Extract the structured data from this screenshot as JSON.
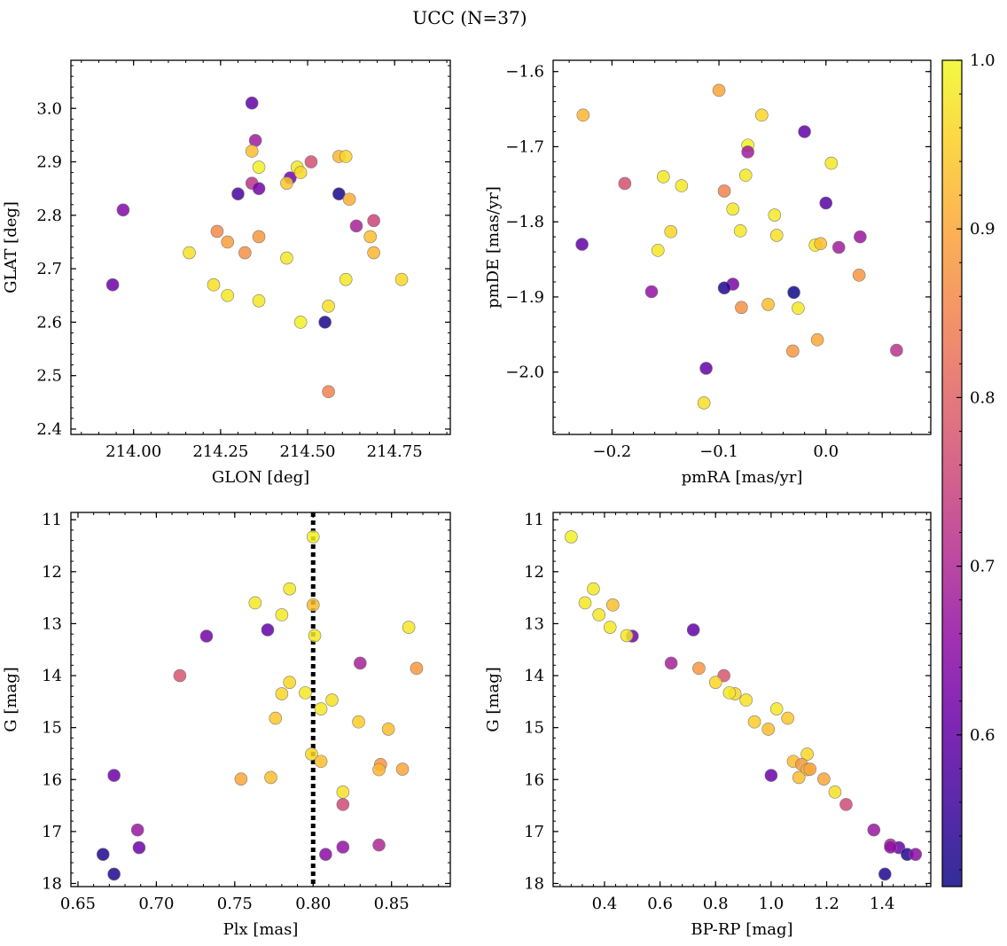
{
  "figure": {
    "title": "UCC (N=37)"
  },
  "colors": {
    "cmap": [
      "#0d0887",
      "#3d049b",
      "#6a00a8",
      "#900da4",
      "#b12a90",
      "#cc4778",
      "#e16462",
      "#f2844b",
      "#fca636",
      "#fcce25",
      "#f0f921"
    ]
  },
  "colorbar": {
    "vmin": 0.51,
    "vmax": 1.0,
    "ticks": [
      "0.6",
      "0.7",
      "0.8",
      "0.9",
      "1.0"
    ],
    "tick_values": [
      0.6,
      0.7,
      0.8,
      0.9,
      1.0
    ]
  },
  "chart_data": [
    {
      "type": "scatter",
      "xlabel": "GLON [deg]",
      "ylabel": "GLAT [deg]",
      "xlim": [
        213.82,
        214.91
      ],
      "ylim": [
        2.39,
        3.09
      ],
      "xticks": [
        "214.00",
        "214.25",
        "214.50",
        "214.75"
      ],
      "xtick_values": [
        214.0,
        214.25,
        214.5,
        214.75
      ],
      "yticks": [
        "2.4",
        "2.5",
        "2.6",
        "2.7",
        "2.8",
        "2.9",
        "3.0"
      ],
      "ytick_values": [
        2.4,
        2.5,
        2.6,
        2.7,
        2.8,
        2.9,
        3.0
      ],
      "points": [
        {
          "x": 214.34,
          "y": 3.01,
          "c": 0.6
        },
        {
          "x": 214.35,
          "y": 2.94,
          "c": 0.68
        },
        {
          "x": 214.34,
          "y": 2.92,
          "c": 0.93
        },
        {
          "x": 214.36,
          "y": 2.89,
          "c": 0.99
        },
        {
          "x": 214.51,
          "y": 2.9,
          "c": 0.77
        },
        {
          "x": 214.59,
          "y": 2.91,
          "c": 0.92
        },
        {
          "x": 214.61,
          "y": 2.91,
          "c": 0.96
        },
        {
          "x": 214.45,
          "y": 2.87,
          "c": 0.62
        },
        {
          "x": 214.47,
          "y": 2.89,
          "c": 0.98
        },
        {
          "x": 214.48,
          "y": 2.88,
          "c": 0.96
        },
        {
          "x": 214.44,
          "y": 2.86,
          "c": 0.94
        },
        {
          "x": 214.34,
          "y": 2.86,
          "c": 0.72
        },
        {
          "x": 214.36,
          "y": 2.85,
          "c": 0.62
        },
        {
          "x": 214.3,
          "y": 2.84,
          "c": 0.57
        },
        {
          "x": 214.59,
          "y": 2.84,
          "c": 0.52
        },
        {
          "x": 214.62,
          "y": 2.83,
          "c": 0.91
        },
        {
          "x": 213.97,
          "y": 2.81,
          "c": 0.64
        },
        {
          "x": 214.64,
          "y": 2.78,
          "c": 0.69
        },
        {
          "x": 214.69,
          "y": 2.79,
          "c": 0.75
        },
        {
          "x": 214.24,
          "y": 2.77,
          "c": 0.86
        },
        {
          "x": 214.27,
          "y": 2.75,
          "c": 0.89
        },
        {
          "x": 214.36,
          "y": 2.76,
          "c": 0.88
        },
        {
          "x": 214.68,
          "y": 2.76,
          "c": 0.93
        },
        {
          "x": 214.16,
          "y": 2.73,
          "c": 0.97
        },
        {
          "x": 214.32,
          "y": 2.73,
          "c": 0.87
        },
        {
          "x": 214.69,
          "y": 2.73,
          "c": 0.92
        },
        {
          "x": 214.44,
          "y": 2.72,
          "c": 0.98
        },
        {
          "x": 213.94,
          "y": 2.67,
          "c": 0.61
        },
        {
          "x": 214.23,
          "y": 2.67,
          "c": 0.97
        },
        {
          "x": 214.61,
          "y": 2.68,
          "c": 0.98
        },
        {
          "x": 214.77,
          "y": 2.68,
          "c": 0.96
        },
        {
          "x": 214.27,
          "y": 2.65,
          "c": 0.98
        },
        {
          "x": 214.36,
          "y": 2.64,
          "c": 0.98
        },
        {
          "x": 214.56,
          "y": 2.63,
          "c": 0.97
        },
        {
          "x": 214.48,
          "y": 2.6,
          "c": 0.99
        },
        {
          "x": 214.55,
          "y": 2.6,
          "c": 0.52
        },
        {
          "x": 214.56,
          "y": 2.47,
          "c": 0.85
        }
      ]
    },
    {
      "type": "scatter",
      "xlabel": "pmRA [mas/yr]",
      "ylabel": "pmDE [mas/yr]",
      "xlim": [
        -0.255,
        0.098
      ],
      "ylim": [
        -2.083,
        -1.585
      ],
      "xticks": [
        "−0.2",
        "−0.1",
        "0.0"
      ],
      "xtick_values": [
        -0.2,
        -0.1,
        0.0
      ],
      "yticks": [
        "−1.6",
        "−1.7",
        "−1.8",
        "−1.9",
        "−2.0"
      ],
      "ytick_values": [
        -1.6,
        -1.7,
        -1.8,
        -1.9,
        -2.0
      ],
      "points": [
        {
          "x": -0.1,
          "y": -1.625,
          "c": 0.9
        },
        {
          "x": -0.227,
          "y": -1.658,
          "c": 0.92
        },
        {
          "x": -0.06,
          "y": -1.658,
          "c": 0.96
        },
        {
          "x": -0.02,
          "y": -1.68,
          "c": 0.6
        },
        {
          "x": -0.073,
          "y": -1.698,
          "c": 0.99
        },
        {
          "x": -0.073,
          "y": -1.707,
          "c": 0.68
        },
        {
          "x": 0.005,
          "y": -1.722,
          "c": 0.98
        },
        {
          "x": -0.152,
          "y": -1.74,
          "c": 0.98
        },
        {
          "x": -0.075,
          "y": -1.738,
          "c": 0.98
        },
        {
          "x": -0.188,
          "y": -1.749,
          "c": 0.77
        },
        {
          "x": -0.135,
          "y": -1.752,
          "c": 0.98
        },
        {
          "x": -0.095,
          "y": -1.759,
          "c": 0.85
        },
        {
          "x": 0.0,
          "y": -1.775,
          "c": 0.59
        },
        {
          "x": -0.087,
          "y": -1.783,
          "c": 0.98
        },
        {
          "x": -0.048,
          "y": -1.791,
          "c": 0.98
        },
        {
          "x": -0.228,
          "y": -1.83,
          "c": 0.6
        },
        {
          "x": -0.145,
          "y": -1.813,
          "c": 0.96
        },
        {
          "x": -0.08,
          "y": -1.812,
          "c": 0.98
        },
        {
          "x": -0.046,
          "y": -1.818,
          "c": 0.97
        },
        {
          "x": 0.032,
          "y": -1.82,
          "c": 0.67
        },
        {
          "x": -0.157,
          "y": -1.838,
          "c": 0.98
        },
        {
          "x": -0.01,
          "y": -1.831,
          "c": 0.98
        },
        {
          "x": -0.005,
          "y": -1.829,
          "c": 0.93
        },
        {
          "x": 0.012,
          "y": -1.834,
          "c": 0.68
        },
        {
          "x": 0.031,
          "y": -1.871,
          "c": 0.88
        },
        {
          "x": -0.087,
          "y": -1.883,
          "c": 0.63
        },
        {
          "x": -0.095,
          "y": -1.888,
          "c": 0.53
        },
        {
          "x": -0.163,
          "y": -1.893,
          "c": 0.66
        },
        {
          "x": -0.03,
          "y": -1.894,
          "c": 0.51
        },
        {
          "x": -0.079,
          "y": -1.914,
          "c": 0.87
        },
        {
          "x": -0.054,
          "y": -1.91,
          "c": 0.93
        },
        {
          "x": -0.026,
          "y": -1.915,
          "c": 0.98
        },
        {
          "x": -0.008,
          "y": -1.957,
          "c": 0.9
        },
        {
          "x": -0.031,
          "y": -1.972,
          "c": 0.88
        },
        {
          "x": 0.066,
          "y": -1.971,
          "c": 0.72
        },
        {
          "x": -0.112,
          "y": -1.995,
          "c": 0.6
        },
        {
          "x": -0.114,
          "y": -2.041,
          "c": 0.97
        }
      ]
    },
    {
      "type": "scatter",
      "xlabel": "Plx [mas]",
      "ylabel": "G [mag]",
      "xlim": [
        0.6455,
        0.8875
      ],
      "ylim": [
        18.06,
        10.86
      ],
      "inverted_y": true,
      "vline": 0.8,
      "xticks": [
        "0.65",
        "0.70",
        "0.75",
        "0.80",
        "0.85"
      ],
      "xtick_values": [
        0.65,
        0.7,
        0.75,
        0.8,
        0.85
      ],
      "yticks": [
        "11",
        "12",
        "13",
        "14",
        "15",
        "16",
        "17",
        "18"
      ],
      "ytick_values": [
        11,
        12,
        13,
        14,
        15,
        16,
        17,
        18
      ],
      "points": [
        {
          "x": 0.8,
          "y": 11.33,
          "c": 0.99
        },
        {
          "x": 0.785,
          "y": 12.33,
          "c": 0.98
        },
        {
          "x": 0.763,
          "y": 12.6,
          "c": 0.98
        },
        {
          "x": 0.8,
          "y": 12.64,
          "c": 0.93
        },
        {
          "x": 0.78,
          "y": 12.83,
          "c": 0.98
        },
        {
          "x": 0.861,
          "y": 13.07,
          "c": 0.98
        },
        {
          "x": 0.771,
          "y": 13.12,
          "c": 0.6
        },
        {
          "x": 0.732,
          "y": 13.24,
          "c": 0.62
        },
        {
          "x": 0.801,
          "y": 13.23,
          "c": 0.98
        },
        {
          "x": 0.83,
          "y": 13.76,
          "c": 0.69
        },
        {
          "x": 0.866,
          "y": 13.86,
          "c": 0.88
        },
        {
          "x": 0.715,
          "y": 14.0,
          "c": 0.78
        },
        {
          "x": 0.785,
          "y": 14.13,
          "c": 0.96
        },
        {
          "x": 0.78,
          "y": 14.35,
          "c": 0.96
        },
        {
          "x": 0.795,
          "y": 14.33,
          "c": 0.98
        },
        {
          "x": 0.812,
          "y": 14.47,
          "c": 0.97
        },
        {
          "x": 0.805,
          "y": 14.64,
          "c": 0.98
        },
        {
          "x": 0.776,
          "y": 14.82,
          "c": 0.94
        },
        {
          "x": 0.829,
          "y": 14.89,
          "c": 0.95
        },
        {
          "x": 0.848,
          "y": 15.03,
          "c": 0.93
        },
        {
          "x": 0.799,
          "y": 15.51,
          "c": 0.96
        },
        {
          "x": 0.805,
          "y": 15.65,
          "c": 0.93
        },
        {
          "x": 0.843,
          "y": 15.71,
          "c": 0.88
        },
        {
          "x": 0.842,
          "y": 15.81,
          "c": 0.92
        },
        {
          "x": 0.857,
          "y": 15.8,
          "c": 0.9
        },
        {
          "x": 0.673,
          "y": 15.92,
          "c": 0.61
        },
        {
          "x": 0.754,
          "y": 15.99,
          "c": 0.9
        },
        {
          "x": 0.773,
          "y": 15.96,
          "c": 0.93
        },
        {
          "x": 0.819,
          "y": 16.24,
          "c": 0.97
        },
        {
          "x": 0.819,
          "y": 16.48,
          "c": 0.76
        },
        {
          "x": 0.688,
          "y": 16.97,
          "c": 0.67
        },
        {
          "x": 0.842,
          "y": 17.26,
          "c": 0.7
        },
        {
          "x": 0.689,
          "y": 17.31,
          "c": 0.61
        },
        {
          "x": 0.819,
          "y": 17.3,
          "c": 0.66
        },
        {
          "x": 0.666,
          "y": 17.44,
          "c": 0.53
        },
        {
          "x": 0.808,
          "y": 17.44,
          "c": 0.65
        },
        {
          "x": 0.673,
          "y": 17.82,
          "c": 0.53
        }
      ]
    },
    {
      "type": "scatter",
      "xlabel": "BP-RP [mag]",
      "ylabel": "G [mag]",
      "xlim": [
        0.215,
        1.575
      ],
      "ylim": [
        18.06,
        10.86
      ],
      "inverted_y": true,
      "xticks": [
        "0.4",
        "0.6",
        "0.8",
        "1.0",
        "1.2",
        "1.4"
      ],
      "xtick_values": [
        0.4,
        0.6,
        0.8,
        1.0,
        1.2,
        1.4
      ],
      "yticks": [
        "11",
        "12",
        "13",
        "14",
        "15",
        "16",
        "17",
        "18"
      ],
      "ytick_values": [
        11,
        12,
        13,
        14,
        15,
        16,
        17,
        18
      ],
      "points": [
        {
          "x": 0.28,
          "y": 11.33,
          "c": 0.99
        },
        {
          "x": 0.36,
          "y": 12.33,
          "c": 0.98
        },
        {
          "x": 0.33,
          "y": 12.6,
          "c": 0.98
        },
        {
          "x": 0.43,
          "y": 12.64,
          "c": 0.93
        },
        {
          "x": 0.38,
          "y": 12.83,
          "c": 0.98
        },
        {
          "x": 0.42,
          "y": 13.07,
          "c": 0.98
        },
        {
          "x": 0.72,
          "y": 13.12,
          "c": 0.6
        },
        {
          "x": 0.5,
          "y": 13.24,
          "c": 0.62
        },
        {
          "x": 0.48,
          "y": 13.23,
          "c": 0.98
        },
        {
          "x": 0.64,
          "y": 13.76,
          "c": 0.69
        },
        {
          "x": 0.74,
          "y": 13.86,
          "c": 0.88
        },
        {
          "x": 0.83,
          "y": 14.0,
          "c": 0.78
        },
        {
          "x": 0.8,
          "y": 14.13,
          "c": 0.96
        },
        {
          "x": 0.87,
          "y": 14.35,
          "c": 0.96
        },
        {
          "x": 0.85,
          "y": 14.33,
          "c": 0.98
        },
        {
          "x": 0.91,
          "y": 14.47,
          "c": 0.97
        },
        {
          "x": 1.02,
          "y": 14.64,
          "c": 0.98
        },
        {
          "x": 1.06,
          "y": 14.82,
          "c": 0.94
        },
        {
          "x": 0.94,
          "y": 14.89,
          "c": 0.95
        },
        {
          "x": 0.99,
          "y": 15.03,
          "c": 0.93
        },
        {
          "x": 1.13,
          "y": 15.51,
          "c": 0.96
        },
        {
          "x": 1.08,
          "y": 15.65,
          "c": 0.93
        },
        {
          "x": 1.11,
          "y": 15.71,
          "c": 0.88
        },
        {
          "x": 1.13,
          "y": 15.81,
          "c": 0.92
        },
        {
          "x": 1.14,
          "y": 15.8,
          "c": 0.9
        },
        {
          "x": 1.0,
          "y": 15.92,
          "c": 0.61
        },
        {
          "x": 1.19,
          "y": 15.99,
          "c": 0.9
        },
        {
          "x": 1.1,
          "y": 15.96,
          "c": 0.93
        },
        {
          "x": 1.23,
          "y": 16.24,
          "c": 0.97
        },
        {
          "x": 1.27,
          "y": 16.48,
          "c": 0.76
        },
        {
          "x": 1.37,
          "y": 16.97,
          "c": 0.67
        },
        {
          "x": 1.43,
          "y": 17.26,
          "c": 0.7
        },
        {
          "x": 1.46,
          "y": 17.31,
          "c": 0.61
        },
        {
          "x": 1.43,
          "y": 17.3,
          "c": 0.66
        },
        {
          "x": 1.49,
          "y": 17.44,
          "c": 0.53
        },
        {
          "x": 1.52,
          "y": 17.44,
          "c": 0.65
        },
        {
          "x": 1.41,
          "y": 17.82,
          "c": 0.53
        }
      ]
    }
  ]
}
